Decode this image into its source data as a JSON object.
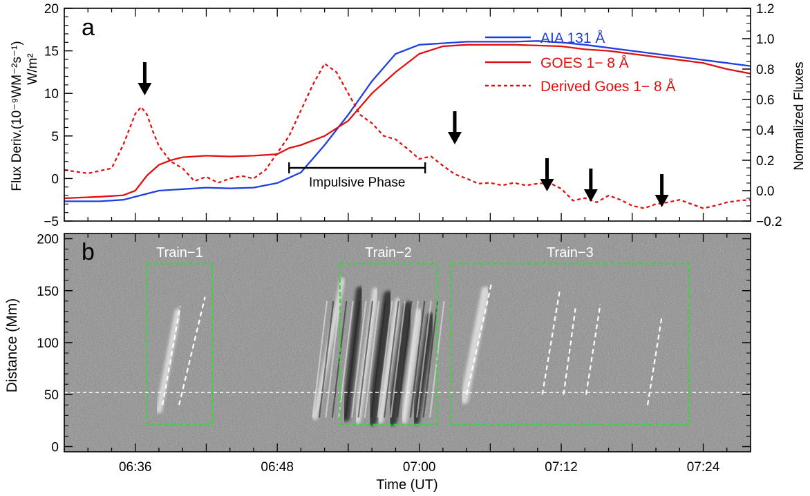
{
  "chart_data": [
    {
      "panel": "a",
      "type": "line",
      "panel_label": "a",
      "x_range_minutes_after_0630": [
        0,
        58
      ],
      "ylabel_left": "Flux Deriv.(10⁻⁹WM⁻²s⁻¹)",
      "ylabel_left_sub": "W/m²",
      "ylim_left": [
        -5,
        20
      ],
      "yticks_left": [
        "−5",
        "0",
        "5",
        "10",
        "15",
        "20"
      ],
      "ylabel_right": "Normalized Fluxes",
      "ylim_right": [
        -0.2,
        1.2
      ],
      "yticks_right": [
        "−0.2",
        "0.0",
        "0.2",
        "0.4",
        "0.6",
        "0.8",
        "1.0",
        "1.2"
      ],
      "series": [
        {
          "name": "AIA 131 Å",
          "axis": "right",
          "color": "#1f3fe0",
          "style": "solid",
          "x": [
            0,
            3,
            5,
            6,
            8,
            10,
            12,
            14,
            16,
            18,
            20,
            22,
            24,
            26,
            28,
            30,
            32,
            34,
            36,
            38,
            40,
            42,
            44,
            46,
            48,
            50,
            52,
            54,
            56,
            58
          ],
          "y": [
            -0.07,
            -0.07,
            -0.06,
            -0.04,
            0.0,
            0.01,
            0.02,
            0.015,
            0.02,
            0.05,
            0.12,
            0.3,
            0.5,
            0.72,
            0.9,
            0.96,
            0.97,
            0.98,
            0.98,
            0.98,
            0.985,
            0.975,
            0.96,
            0.94,
            0.92,
            0.9,
            0.88,
            0.86,
            0.84,
            0.82
          ]
        },
        {
          "name": "GOES 1− 8 Å",
          "axis": "right",
          "color": "#e01010",
          "style": "solid",
          "x": [
            0,
            3,
            5,
            6,
            7,
            8,
            9,
            10,
            12,
            14,
            16,
            18,
            19,
            20,
            22,
            24,
            26,
            28,
            30,
            32,
            34,
            36,
            38,
            40,
            42,
            44,
            46,
            48,
            50,
            52,
            54,
            56,
            58
          ],
          "y": [
            -0.05,
            -0.04,
            -0.03,
            0.0,
            0.1,
            0.17,
            0.2,
            0.22,
            0.23,
            0.225,
            0.23,
            0.24,
            0.28,
            0.3,
            0.36,
            0.46,
            0.64,
            0.78,
            0.9,
            0.95,
            0.96,
            0.96,
            0.96,
            0.955,
            0.95,
            0.93,
            0.92,
            0.9,
            0.88,
            0.86,
            0.84,
            0.8,
            0.77
          ]
        },
        {
          "name": "Derived Goes 1− 8 Å",
          "axis": "left",
          "color": "#e01010",
          "style": "dashed",
          "x": [
            0,
            1,
            2,
            3,
            4,
            5,
            6,
            6.5,
            7,
            7.5,
            8,
            9,
            10,
            11,
            12,
            13,
            14,
            15,
            16,
            17,
            18,
            19,
            20,
            21,
            22,
            23,
            24,
            25,
            26,
            27,
            28,
            29,
            30,
            31,
            32,
            33,
            34,
            35,
            36,
            37,
            38,
            39,
            40,
            41,
            42,
            43,
            44,
            45,
            46,
            47,
            48,
            49,
            50,
            51,
            52,
            53,
            54,
            55,
            56,
            57,
            58
          ],
          "y": [
            1.0,
            0.8,
            0.6,
            0.9,
            1.2,
            4.0,
            7.6,
            8.4,
            7.5,
            5.5,
            3.8,
            2.0,
            1.2,
            -0.3,
            0.2,
            -0.5,
            0.0,
            0.3,
            0.0,
            1.0,
            3.0,
            5.0,
            8.0,
            11.0,
            13.5,
            12.5,
            10.0,
            7.5,
            6.5,
            5.0,
            4.6,
            3.5,
            2.3,
            2.6,
            1.5,
            0.5,
            0.0,
            -0.6,
            -0.5,
            -0.8,
            -0.5,
            -0.8,
            -0.6,
            -0.5,
            -1.2,
            -2.6,
            -2.3,
            -2.8,
            -2.0,
            -2.5,
            -3.2,
            -3.5,
            -3.0,
            -2.8,
            -2.5,
            -3.0,
            -3.5,
            -3.2,
            -2.8,
            -2.6,
            -2.5
          ]
        }
      ],
      "annotations": {
        "impulsive_phase": {
          "label": "Impulsive Phase",
          "x_start": 19,
          "x_end": 30.5
        },
        "arrows_x": [
          6.8,
          33.0,
          40.8,
          44.5,
          50.5
        ]
      }
    },
    {
      "panel": "b",
      "type": "heatmap",
      "panel_label": "b",
      "ylabel": "Distance (Mm)",
      "ylim": [
        -5,
        205
      ],
      "yticks": [
        "0",
        "50",
        "100",
        "150",
        "200"
      ],
      "xlabel": "Time (UT)",
      "xticks": [
        "06:36",
        "06:48",
        "07:00",
        "07:12",
        "07:24"
      ],
      "xtick_minutes_after_0630": [
        6,
        18,
        30,
        42,
        54
      ],
      "reference_line_distance": 52,
      "trains": [
        {
          "label": "Train−1",
          "x_start": 7,
          "x_end": 12.5,
          "y_start": 21,
          "y_end": 176
        },
        {
          "label": "Train−2",
          "x_start": 23.3,
          "x_end": 31.5,
          "y_start": 21,
          "y_end": 176
        },
        {
          "label": "Train−3",
          "x_start": 32.7,
          "x_end": 52.8,
          "y_start": 21,
          "y_end": 176
        }
      ],
      "ridges": [
        {
          "x1": 8.3,
          "y1": 40,
          "x2": 9.8,
          "y2": 135
        },
        {
          "x1": 9.7,
          "y1": 40,
          "x2": 11.9,
          "y2": 144
        },
        {
          "x1": 34.0,
          "y1": 50,
          "x2": 36.1,
          "y2": 157
        },
        {
          "x1": 40.4,
          "y1": 50,
          "x2": 41.9,
          "y2": 152
        },
        {
          "x1": 42.2,
          "y1": 50,
          "x2": 43.2,
          "y2": 133
        },
        {
          "x1": 44.1,
          "y1": 50,
          "x2": 45.3,
          "y2": 137
        },
        {
          "x1": 49.3,
          "y1": 40,
          "x2": 50.5,
          "y2": 125
        }
      ],
      "bright_bands": [
        {
          "x1": 21.2,
          "y1": 28,
          "x2": 23.5,
          "y2": 160,
          "dark": false,
          "w": 2.5
        },
        {
          "x1": 23.8,
          "y1": 28,
          "x2": 25.0,
          "y2": 150,
          "dark": true,
          "w": 4
        },
        {
          "x1": 24.8,
          "y1": 25,
          "x2": 26.3,
          "y2": 150,
          "dark": false,
          "w": 3
        },
        {
          "x1": 26.0,
          "y1": 25,
          "x2": 27.4,
          "y2": 145,
          "dark": true,
          "w": 5
        },
        {
          "x1": 26.7,
          "y1": 25,
          "x2": 28.2,
          "y2": 140,
          "dark": false,
          "w": 3
        },
        {
          "x1": 27.7,
          "y1": 25,
          "x2": 29.1,
          "y2": 135,
          "dark": true,
          "w": 5
        },
        {
          "x1": 28.7,
          "y1": 25,
          "x2": 30.0,
          "y2": 130,
          "dark": false,
          "w": 3
        },
        {
          "x1": 29.7,
          "y1": 25,
          "x2": 31.0,
          "y2": 125,
          "dark": true,
          "w": 4
        },
        {
          "x1": 33.8,
          "y1": 45,
          "x2": 35.6,
          "y2": 150,
          "dark": false,
          "w": 4
        },
        {
          "x1": 8.0,
          "y1": 35,
          "x2": 9.6,
          "y2": 130,
          "dark": false,
          "w": 3
        }
      ]
    }
  ]
}
